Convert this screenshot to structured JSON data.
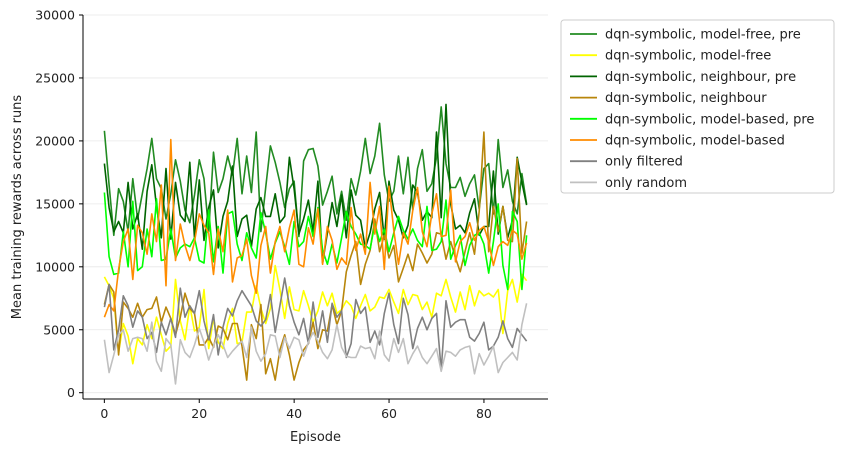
{
  "chart_data": {
    "type": "line",
    "xlabel": "Episode",
    "ylabel": "Mean training rewards across runs",
    "xlim": [
      -4.5,
      93.5
    ],
    "ylim": [
      -500,
      30000
    ],
    "x_ticks": [
      0,
      20,
      40,
      60,
      80
    ],
    "y_ticks": [
      0,
      5000,
      10000,
      15000,
      20000,
      25000,
      30000
    ],
    "x_tick_labels": [
      "0",
      "20",
      "40",
      "60",
      "80"
    ],
    "y_tick_labels": [
      "0",
      "5000",
      "10000",
      "15000",
      "20000",
      "25000",
      "30000"
    ],
    "grid": "horizontal",
    "legend_position": "outside-right",
    "spines": "left-bottom",
    "series": [
      {
        "name": "dqn-symbolic, model-free, pre",
        "color": "#228B22",
        "values": [
          20800,
          16500,
          12500,
          16200,
          15200,
          12800,
          17000,
          13800,
          15800,
          17800,
          20200,
          17000,
          16200,
          13800,
          15800,
          18500,
          16800,
          14500,
          13500,
          15700,
          18500,
          17000,
          12800,
          19100,
          15900,
          17000,
          18800,
          17300,
          20200,
          15800,
          18800,
          15900,
          20700,
          12800,
          16300,
          19600,
          18300,
          16700,
          14700,
          16200,
          16800,
          12400,
          18400,
          19300,
          19400,
          18000,
          14900,
          16000,
          17200,
          14200,
          16000,
          13700,
          17000,
          15700,
          17600,
          20200,
          17400,
          18800,
          21400,
          17300,
          15200,
          16000,
          18800,
          15800,
          18700,
          14500,
          17800,
          19300,
          16000,
          16600,
          18700,
          22700,
          18200,
          16300,
          16300,
          17100,
          15600,
          16600,
          17300,
          14600,
          17800,
          18200,
          14200,
          20100,
          16300,
          17700,
          15200,
          14200,
          17400,
          15000
        ]
      },
      {
        "name": "dqn-symbolic, model-free",
        "color": "#FFFF00",
        "values": [
          9200,
          8500,
          7500,
          3200,
          5500,
          4500,
          2300,
          4300,
          3800,
          5400,
          4300,
          6000,
          4600,
          3300,
          3700,
          9000,
          5700,
          4200,
          6900,
          4900,
          5200,
          8200,
          3500,
          5900,
          4000,
          3500,
          5500,
          6700,
          3900,
          4000,
          6400,
          6400,
          8500,
          6700,
          5500,
          6700,
          10100,
          8200,
          5900,
          8400,
          6600,
          6500,
          8100,
          6900,
          5600,
          6500,
          8000,
          6900,
          7900,
          6300,
          6600,
          7300,
          6900,
          5900,
          6900,
          7800,
          6500,
          6800,
          7600,
          7500,
          8200,
          7200,
          6300,
          8200,
          7000,
          7800,
          7700,
          6600,
          7200,
          6000,
          7900,
          7700,
          9000,
          7600,
          6400,
          8000,
          6600,
          8500,
          6900,
          8100,
          7700,
          7900,
          7600,
          8200,
          4700,
          8100,
          9000,
          7200,
          9400,
          8900
        ]
      },
      {
        "name": "dqn-symbolic, neighbour, pre",
        "color": "#006400",
        "values": [
          18200,
          14700,
          12800,
          13600,
          12700,
          16700,
          13000,
          14200,
          11400,
          16000,
          18100,
          14800,
          12300,
          17800,
          12200,
          16700,
          14100,
          13600,
          18300,
          12300,
          16900,
          12100,
          14700,
          16100,
          11500,
          14000,
          15200,
          18000,
          12400,
          13800,
          14100,
          11600,
          14600,
          15500,
          14000,
          14000,
          15800,
          13500,
          14000,
          18700,
          16200,
          12600,
          13800,
          15300,
          12800,
          16800,
          10300,
          12700,
          15100,
          13200,
          15700,
          12300,
          16100,
          14100,
          13700,
          11500,
          12700,
          14600,
          15900,
          12200,
          16800,
          14500,
          13700,
          12300,
          13300,
          16500,
          15900,
          13700,
          14400,
          13900,
          20700,
          13900,
          22900,
          15000,
          13000,
          13300,
          12700,
          14300,
          15400,
          12500,
          13200,
          13200,
          17600,
          12600,
          14800,
          12300,
          13700,
          18700,
          16700,
          14900
        ]
      },
      {
        "name": "dqn-symbolic, neighbour",
        "color": "#B8860B",
        "values": [
          7000,
          8600,
          8000,
          3000,
          7200,
          6700,
          6000,
          7100,
          6000,
          6600,
          6700,
          7600,
          5600,
          6800,
          5900,
          4600,
          6000,
          7900,
          6700,
          6300,
          3800,
          3800,
          4400,
          3600,
          5300,
          5100,
          4200,
          5500,
          5500,
          3700,
          1000,
          5400,
          4300,
          7000,
          1500,
          2700,
          1000,
          3400,
          4600,
          3000,
          1000,
          2400,
          3400,
          3900,
          5600,
          3500,
          5000,
          4900,
          7000,
          5400,
          6500,
          9600,
          10900,
          12000,
          8600,
          10200,
          11300,
          13800,
          11200,
          12500,
          10700,
          11700,
          8800,
          9900,
          11000,
          9700,
          11800,
          11100,
          10300,
          11000,
          12700,
          12600,
          10600,
          12000,
          10700,
          9600,
          11200,
          12700,
          11000,
          14400,
          20700,
          11200,
          14800,
          12800,
          14800,
          12100,
          12000,
          18600,
          11100,
          13600
        ]
      },
      {
        "name": "dqn-symbolic, model-based, pre",
        "color": "#00FF00",
        "values": [
          15900,
          10800,
          9400,
          9500,
          12800,
          10000,
          15200,
          9700,
          10000,
          13000,
          10800,
          15400,
          10500,
          10600,
          13000,
          10700,
          11500,
          11800,
          11600,
          12300,
          10500,
          10300,
          14500,
          10400,
          13200,
          9500,
          14200,
          14400,
          11800,
          10500,
          12700,
          11500,
          10700,
          14300,
          12700,
          10600,
          11900,
          12800,
          11600,
          10200,
          13600,
          11600,
          12000,
          14000,
          12400,
          14700,
          11300,
          10200,
          11800,
          10300,
          12300,
          14400,
          13200,
          12600,
          11800,
          11700,
          11400,
          13400,
          12000,
          13000,
          11200,
          12700,
          14000,
          12900,
          12200,
          13000,
          12100,
          11600,
          14800,
          11300,
          11400,
          12000,
          15300,
          10600,
          11700,
          12500,
          10100,
          11700,
          12500,
          12700,
          11800,
          9500,
          12000,
          15000,
          10100,
          8200,
          14400,
          13600,
          8200,
          12500
        ]
      },
      {
        "name": "dqn-symbolic, model-based",
        "color": "#FF8C00",
        "values": [
          6000,
          7000,
          6500,
          9800,
          12000,
          13000,
          9000,
          13300,
          12700,
          11000,
          14200,
          12000,
          16500,
          8500,
          20100,
          10500,
          13400,
          11700,
          10500,
          12000,
          14200,
          13300,
          12700,
          9400,
          13000,
          11200,
          14500,
          8800,
          10700,
          10900,
          12200,
          9300,
          7900,
          11700,
          13200,
          9500,
          12000,
          13200,
          11200,
          13100,
          14500,
          10200,
          10000,
          13100,
          11800,
          14600,
          10200,
          13200,
          12100,
          9800,
          10700,
          10200,
          14700,
          11300,
          12600,
          11000,
          16700,
          12600,
          14800,
          9800,
          16400,
          12900,
          10200,
          12700,
          11800,
          14500,
          16300,
          12800,
          11600,
          14200,
          15800,
          12400,
          12500,
          16100,
          10400,
          12000,
          12400,
          13500,
          12100,
          12900,
          13200,
          12000,
          10100,
          11600,
          12000,
          11700,
          12900,
          12600,
          10600,
          11900
        ]
      },
      {
        "name": "only filtered",
        "color": "#808080",
        "values": [
          6800,
          8600,
          3400,
          5000,
          7700,
          6900,
          5200,
          6500,
          6000,
          4300,
          4800,
          3200,
          5600,
          4600,
          5900,
          4400,
          8300,
          6000,
          6900,
          6300,
          8100,
          5700,
          4200,
          6200,
          3000,
          5200,
          6700,
          6100,
          7300,
          8100,
          7500,
          6900,
          5700,
          5300,
          5800,
          7800,
          4800,
          6900,
          9100,
          6900,
          5600,
          4600,
          5900,
          3900,
          7200,
          4400,
          6500,
          4000,
          7100,
          6000,
          6500,
          2800,
          3900,
          7400,
          6300,
          6800,
          4000,
          4900,
          3800,
          6300,
          7900,
          5400,
          3900,
          7500,
          6200,
          3500,
          5100,
          6000,
          5000,
          5900,
          6300,
          1800,
          7300,
          5200,
          5600,
          5800,
          5800,
          4400,
          4100,
          4700,
          5600,
          3400,
          3700,
          4400,
          5700,
          4300,
          3600,
          5100,
          4600,
          4100
        ]
      },
      {
        "name": "only random",
        "color": "#C0C0C0",
        "values": [
          4200,
          1600,
          3000,
          4600,
          5000,
          3300,
          4300,
          4400,
          4300,
          3300,
          5600,
          2500,
          1700,
          4300,
          3800,
          700,
          4200,
          3200,
          2800,
          3800,
          5100,
          4000,
          2600,
          3700,
          4600,
          3800,
          2800,
          3300,
          3700,
          4100,
          2800,
          5200,
          3300,
          2500,
          3100,
          4600,
          4500,
          2800,
          4400,
          3500,
          4400,
          4200,
          2900,
          4000,
          4800,
          4100,
          3200,
          2700,
          3400,
          5400,
          3600,
          2900,
          2800,
          2800,
          3700,
          3500,
          3600,
          2700,
          4900,
          3000,
          2500,
          4300,
          3200,
          4300,
          2300,
          3100,
          3700,
          2800,
          2300,
          2900,
          3500,
          1700,
          3300,
          3200,
          2900,
          3400,
          3600,
          3700,
          1500,
          3100,
          2200,
          2900,
          3700,
          1600,
          2400,
          2800,
          3200,
          2600,
          5400,
          7100
        ]
      }
    ]
  }
}
